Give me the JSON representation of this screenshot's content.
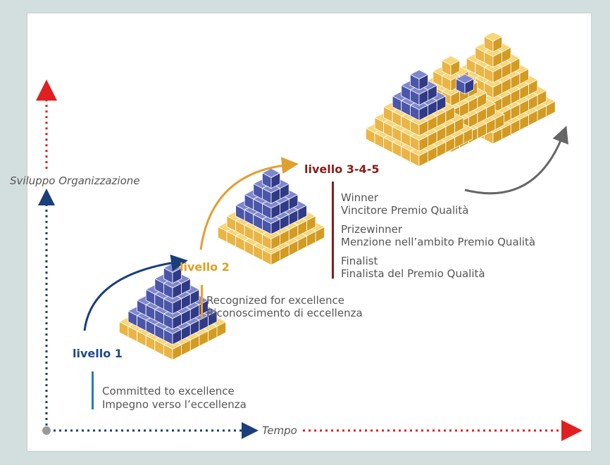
{
  "axes": {
    "y_label": "Sviluppo Organizzazione",
    "x_label": "Tempo"
  },
  "levels": [
    {
      "label": "livello 1",
      "lines": [
        "Committed to excellence",
        "Impegno verso l’eccellenza"
      ]
    },
    {
      "label": "livello 2",
      "lines": [
        "Recognized for excellence",
        "Riconoscimento di eccellenza"
      ]
    },
    {
      "label": "livello 3-4-5",
      "groups": [
        {
          "lines": [
            "Winner",
            "Vincitore Premio Qualità"
          ]
        },
        {
          "lines": [
            "Prizewinner",
            "Menzione nell’ambito Premio Qualità"
          ]
        },
        {
          "lines": [
            "Finalist",
            "Finalista del Premio Qualità"
          ]
        }
      ]
    }
  ]
}
